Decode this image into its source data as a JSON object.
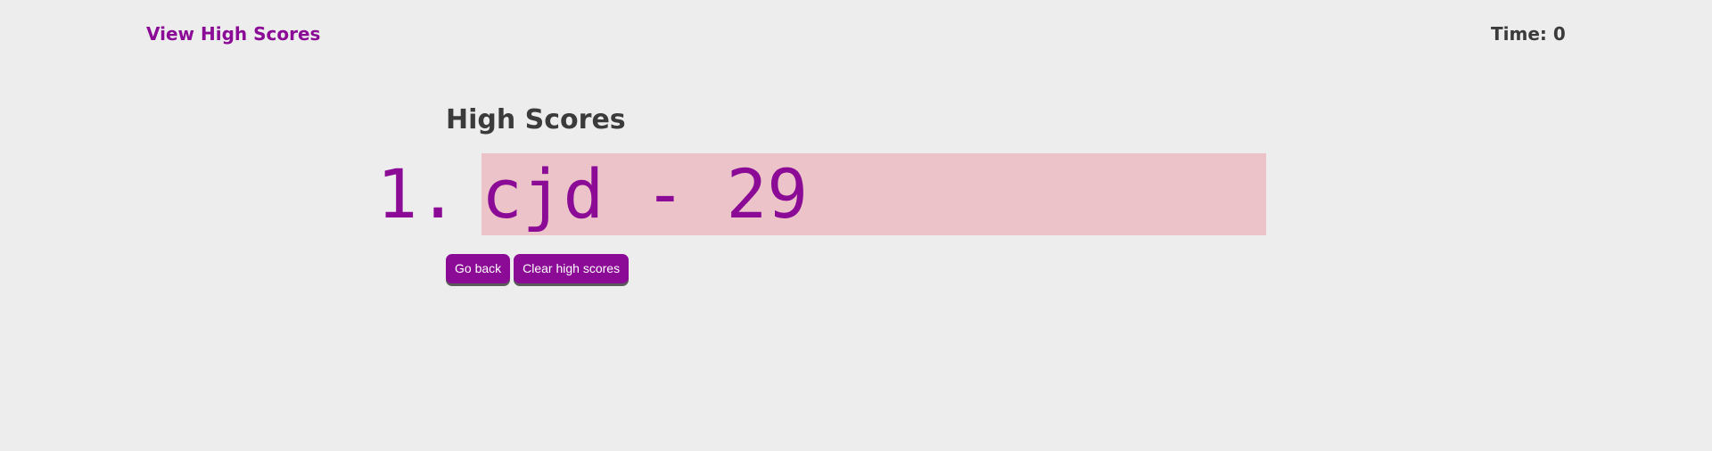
{
  "header": {
    "view_high_scores_label": "View High Scores",
    "timer_label": "Time: 0"
  },
  "main": {
    "title": "High Scores",
    "scores": [
      {
        "rank": "1.",
        "entry": "cjd - 29"
      }
    ],
    "go_back_label": "Go back",
    "clear_label": "Clear high scores"
  },
  "colors": {
    "accent": "#8b0a96",
    "text": "#3b3b3b",
    "background": "#ededed",
    "score_highlight": "#ebc3c9"
  }
}
